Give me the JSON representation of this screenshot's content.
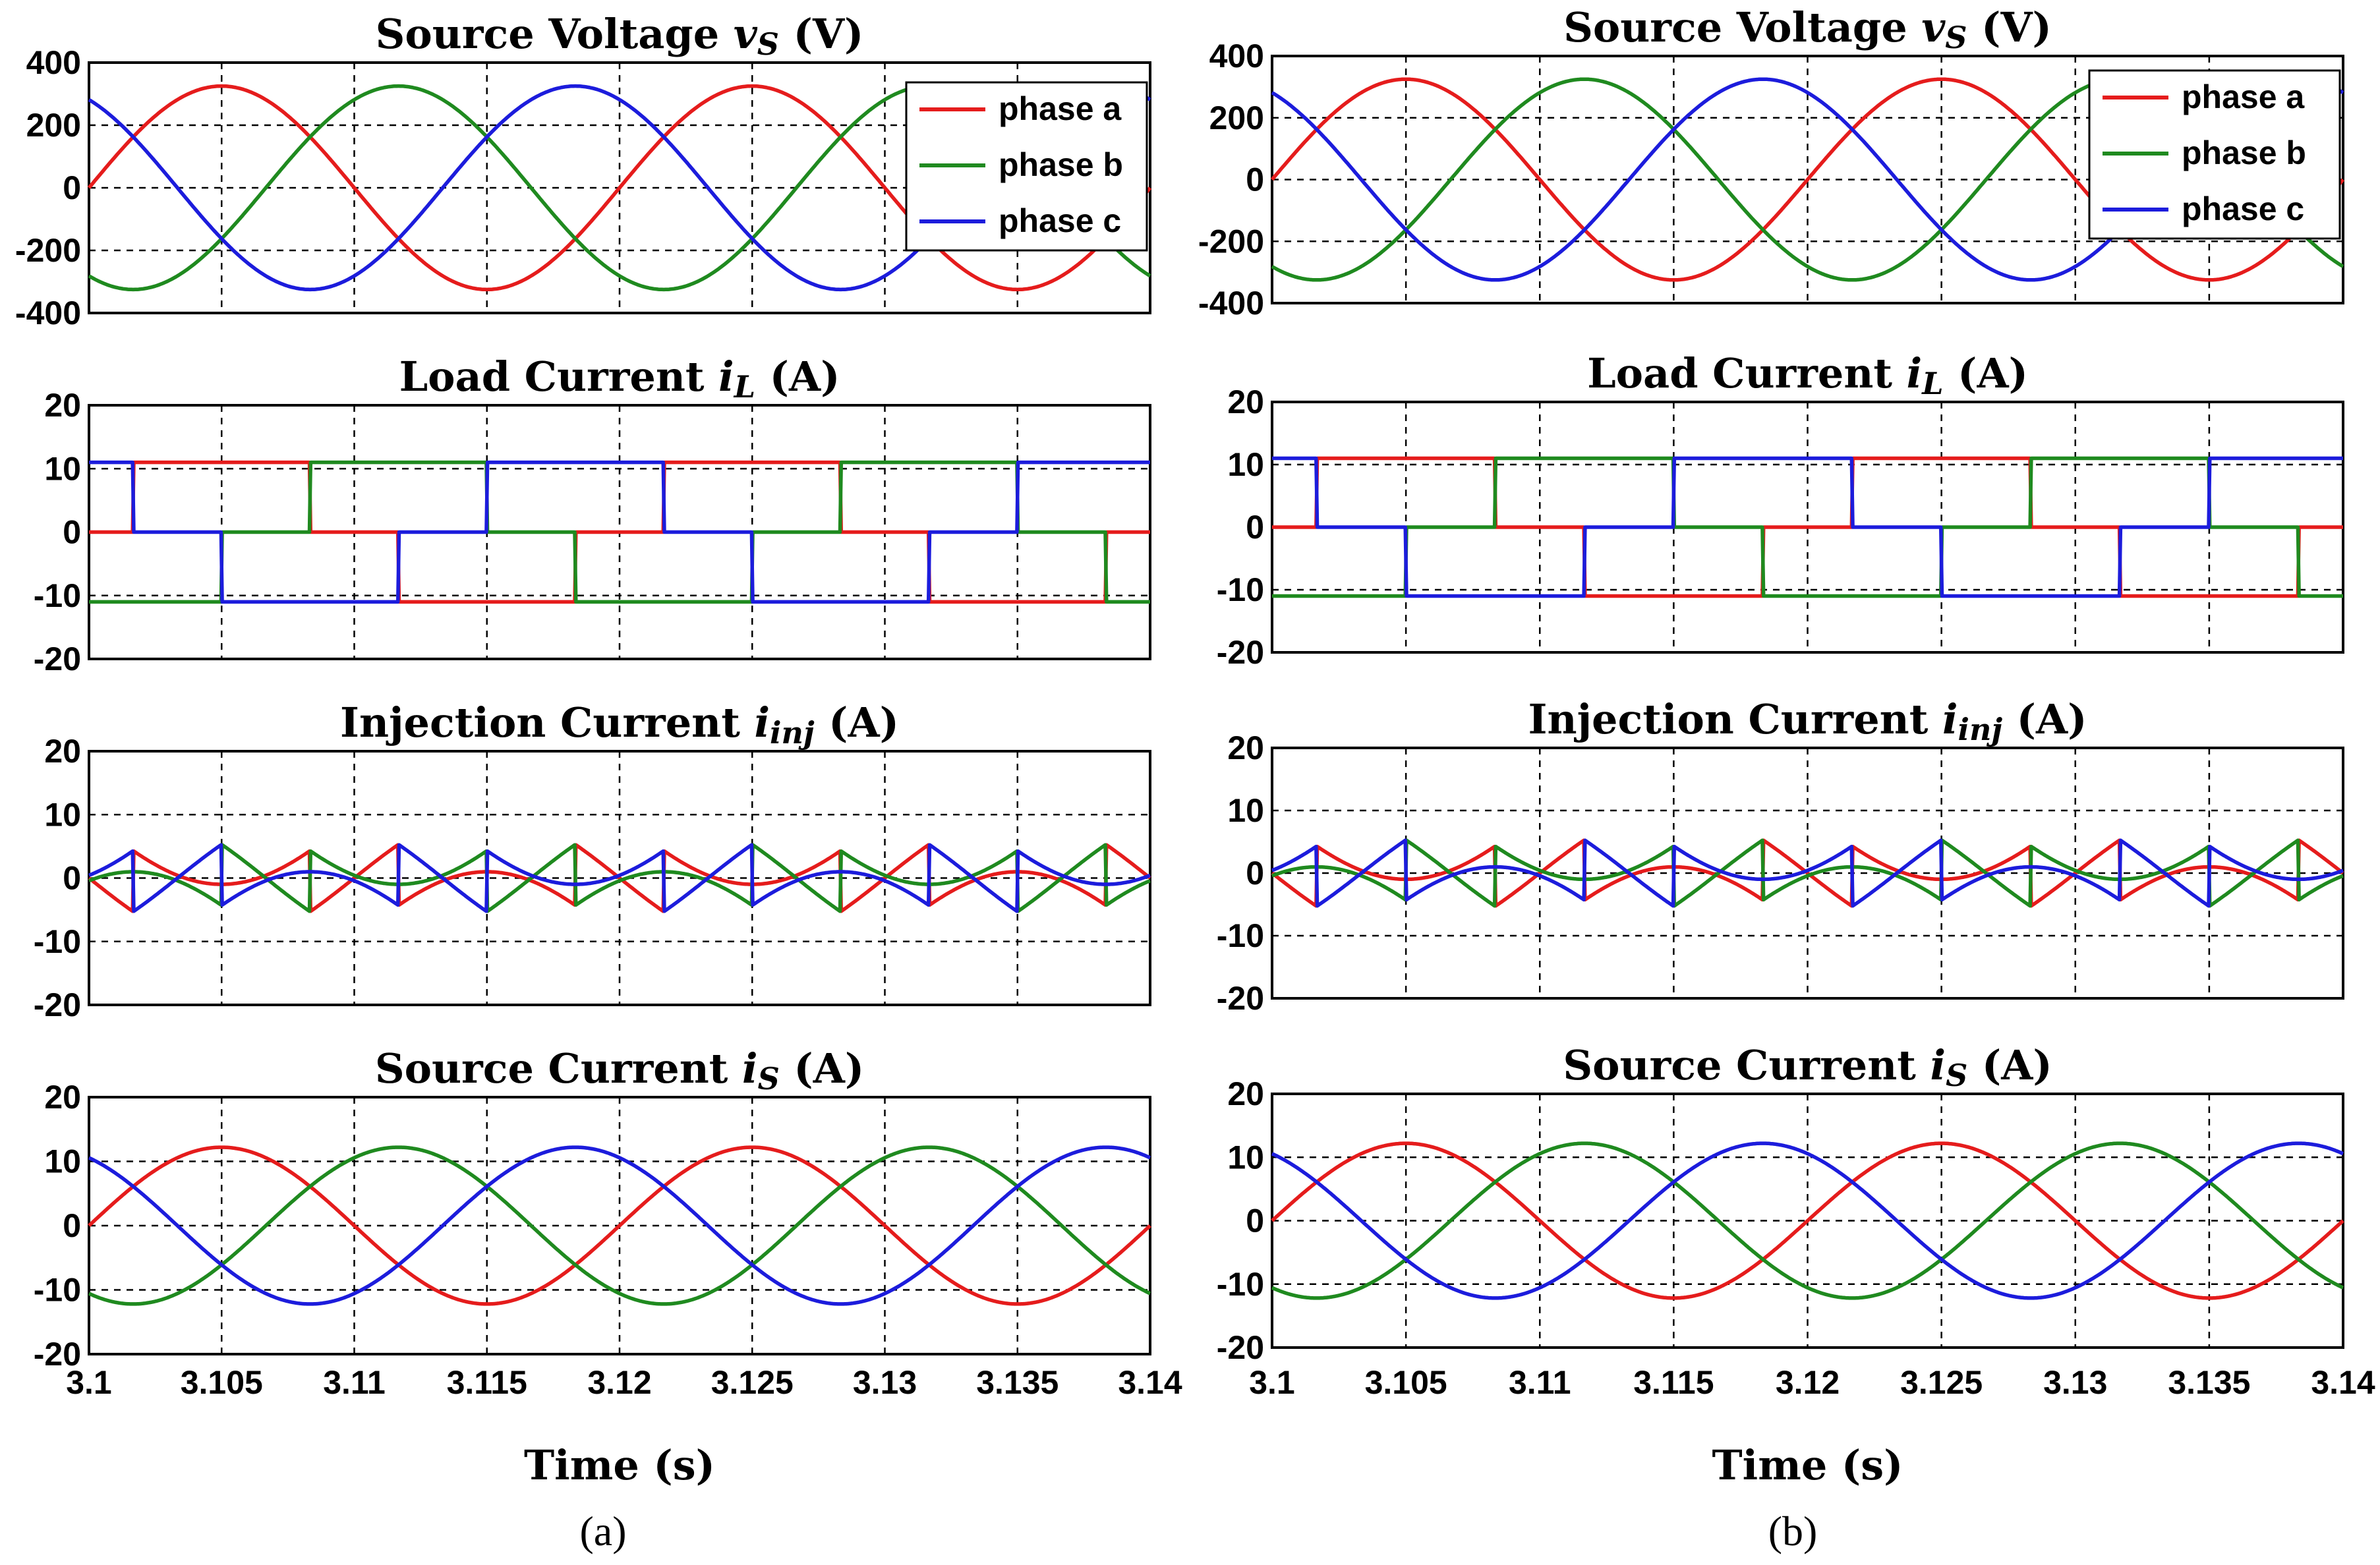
{
  "chart_data": [
    {
      "id": "a",
      "caption_label": "a",
      "xlabel": "Time (s)",
      "x_range": [
        3.1,
        3.14
      ],
      "x_ticks": [
        "3.1",
        "3.105",
        "3.11",
        "3.115",
        "3.12",
        "3.125",
        "3.13",
        "3.135",
        "3.14"
      ],
      "legend": [
        "phase a",
        "phase b",
        "phase c"
      ],
      "colors": {
        "phase a": "#e51c1c",
        "phase b": "#1f8a1f",
        "phase c": "#1c1cdc"
      },
      "subplots": [
        {
          "type": "line",
          "title_main": "Source Voltage ",
          "title_var": "v",
          "title_sub": "S",
          "title_unit": " (V)",
          "ylim": [
            -400,
            400
          ],
          "y_ticks": [
            "400",
            "200",
            "0",
            "-200",
            "-400"
          ],
          "waveform": "sine",
          "amplitude": 325,
          "frequency_hz": 50,
          "has_legend": true
        },
        {
          "type": "line",
          "title_main": "Load Current ",
          "title_var": "i",
          "title_sub": "L",
          "title_unit": " (A)",
          "ylim": [
            -20,
            20
          ],
          "y_ticks": [
            "20",
            "10",
            "0",
            "-10",
            "-20"
          ],
          "waveform": "six-step",
          "amplitude": 11,
          "frequency_hz": 50,
          "has_legend": false
        },
        {
          "type": "line",
          "title_main": "Injection Current ",
          "title_var": "i",
          "title_sub": "inj",
          "title_unit": " (A)",
          "ylim": [
            -20,
            20
          ],
          "y_ticks": [
            "20",
            "10",
            "0",
            "-10",
            "-20"
          ],
          "waveform": "harmonic-compensation",
          "amplitude": 6,
          "frequency_hz": 50,
          "has_legend": false
        },
        {
          "type": "line",
          "title_main": "Source Current ",
          "title_var": "i",
          "title_sub": "S",
          "title_unit": " (A)",
          "ylim": [
            -20,
            20
          ],
          "y_ticks": [
            "20",
            "10",
            "0",
            "-10",
            "-20"
          ],
          "waveform": "sine",
          "amplitude": 12.2,
          "frequency_hz": 50,
          "has_legend": false
        }
      ]
    },
    {
      "id": "b",
      "caption_label": "b",
      "xlabel": "Time (s)",
      "x_range": [
        3.1,
        3.14
      ],
      "x_ticks": [
        "3.1",
        "3.105",
        "3.11",
        "3.115",
        "3.12",
        "3.125",
        "3.13",
        "3.135",
        "3.14"
      ],
      "legend": [
        "phase a",
        "phase b",
        "phase c"
      ],
      "colors": {
        "phase a": "#e51c1c",
        "phase b": "#1f8a1f",
        "phase c": "#1c1cdc"
      },
      "subplots": [
        {
          "type": "line",
          "title_main": "Source Voltage ",
          "title_var": "v",
          "title_sub": "S",
          "title_unit": " (V)",
          "ylim": [
            -400,
            400
          ],
          "y_ticks": [
            "400",
            "200",
            "0",
            "-200",
            "-400"
          ],
          "waveform": "sine",
          "amplitude": 325,
          "frequency_hz": 50,
          "has_legend": true
        },
        {
          "type": "line",
          "title_main": "Load Current ",
          "title_var": "i",
          "title_sub": "L",
          "title_unit": " (A)",
          "ylim": [
            -20,
            20
          ],
          "y_ticks": [
            "20",
            "10",
            "0",
            "-10",
            "-20"
          ],
          "waveform": "six-step",
          "amplitude": 11,
          "frequency_hz": 50,
          "has_legend": false
        },
        {
          "type": "line",
          "title_main": "Injection Current ",
          "title_var": "i",
          "title_sub": "inj",
          "title_unit": " (A)",
          "ylim": [
            -20,
            20
          ],
          "y_ticks": [
            "20",
            "10",
            "0",
            "-10",
            "-20"
          ],
          "waveform": "harmonic-compensation",
          "amplitude": 6,
          "frequency_hz": 50,
          "has_legend": false
        },
        {
          "type": "line",
          "title_main": "Source Current ",
          "title_var": "i",
          "title_sub": "S",
          "title_unit": " (A)",
          "ylim": [
            -20,
            20
          ],
          "y_ticks": [
            "20",
            "10",
            "0",
            "-10",
            "-20"
          ],
          "waveform": "sine",
          "amplitude": 12.2,
          "frequency_hz": 50,
          "has_legend": false
        }
      ]
    }
  ]
}
